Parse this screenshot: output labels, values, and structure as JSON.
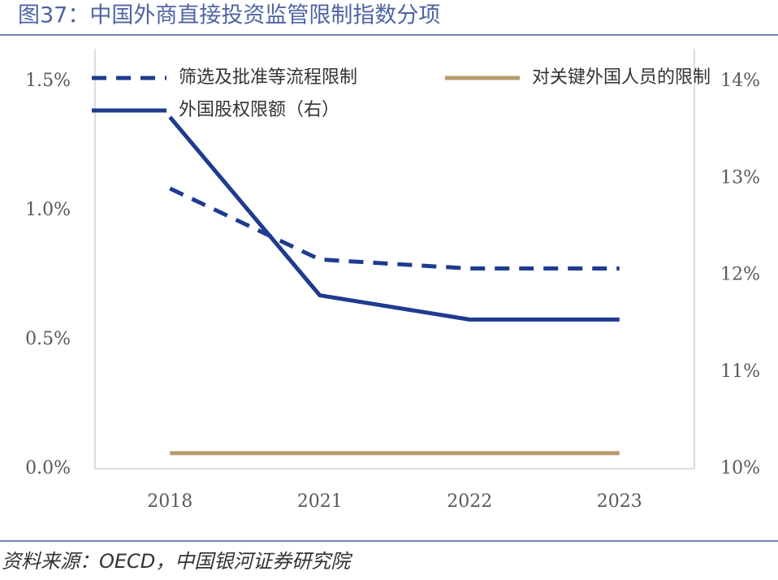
{
  "chart_data": {
    "type": "line",
    "title": "图37：中国外商直接投资监管限制指数分项",
    "source": "资料来源：OECD，中国银河证券研究院",
    "categories": [
      "2018",
      "2021",
      "2022",
      "2023"
    ],
    "series": [
      {
        "name": "筛选及批准等流程限制",
        "color": "#1f3b8f",
        "dash": true,
        "values": [
          1.085,
          0.81,
          0.775,
          0.775
        ]
      },
      {
        "name": "对关键外国人员的限制",
        "color": "#b79b6c",
        "values": [
          0.06,
          0.06,
          0.06,
          0.06
        ]
      },
      {
        "name": "外国股权限额（右）",
        "color": "#1f3b8f",
        "axis": "y2",
        "values": [
          13.63,
          11.79,
          11.54,
          11.54
        ]
      }
    ],
    "ylim": [
      0,
      1.5
    ],
    "yticks": [
      {
        "value": 0,
        "label": "0.0%"
      },
      {
        "value": 0.5,
        "label": "0.5%"
      },
      {
        "value": 1.0,
        "label": "1.0%"
      },
      {
        "value": 1.5,
        "label": "1.5%"
      }
    ],
    "y2lim": [
      10,
      14
    ],
    "y2ticks": [
      {
        "value": 10,
        "label": "10%"
      },
      {
        "value": 11,
        "label": "11%"
      },
      {
        "value": 12,
        "label": "12%"
      },
      {
        "value": 13,
        "label": "13%"
      },
      {
        "value": 14,
        "label": "14%"
      }
    ]
  }
}
